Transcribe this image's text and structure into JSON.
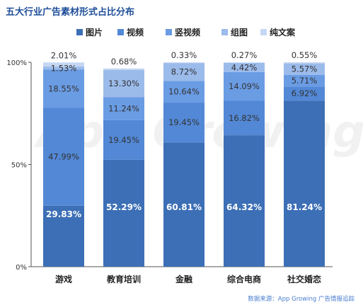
{
  "title": "五大行业广告素材形式占比分布",
  "source": "数据来源：App Growing 广告情报追踪",
  "watermark": "App Growing",
  "chart_data": {
    "type": "bar",
    "stacked": true,
    "title": "五大行业广告素材形式占比分布",
    "categories": [
      "游戏",
      "教育培训",
      "金融",
      "综合电商",
      "社交婚恋"
    ],
    "series": [
      {
        "name": "图片",
        "color": "#3c6fb6",
        "values": [
          29.83,
          52.29,
          60.81,
          64.32,
          81.24
        ],
        "labels": [
          "29.83%",
          "52.29%",
          "60.81%",
          "64.32%",
          "81.24%"
        ]
      },
      {
        "name": "视频",
        "color": "#5288d6",
        "values": [
          47.99,
          19.45,
          19.45,
          16.82,
          6.92
        ],
        "labels": [
          "47.99%",
          "19.45%",
          "19.45%",
          "16.82%",
          "6.92%"
        ]
      },
      {
        "name": "竖视频",
        "color": "#6a9ce4",
        "values": [
          18.55,
          11.24,
          10.64,
          14.09,
          5.71
        ],
        "labels": [
          "18.55%",
          "11.24%",
          "10.64%",
          "14.09%",
          "5.71%"
        ]
      },
      {
        "name": "组图",
        "color": "#9bbbeb",
        "values": [
          1.53,
          13.3,
          8.72,
          4.42,
          5.57
        ],
        "labels": [
          "1.53%",
          "13.30%",
          "8.72%",
          "4.42%",
          "5.57%"
        ]
      },
      {
        "name": "纯文案",
        "color": "#c6d7f3",
        "values": [
          2.01,
          0.68,
          0.33,
          0.27,
          0.55
        ],
        "labels": [
          "2.01%",
          "0.68%",
          "0.33%",
          "0.27%",
          "0.55%"
        ]
      }
    ],
    "yticks": [
      "0%",
      "50%",
      "100%"
    ],
    "ylim": [
      0,
      100
    ],
    "legend_position": "top-center",
    "grid": false
  }
}
